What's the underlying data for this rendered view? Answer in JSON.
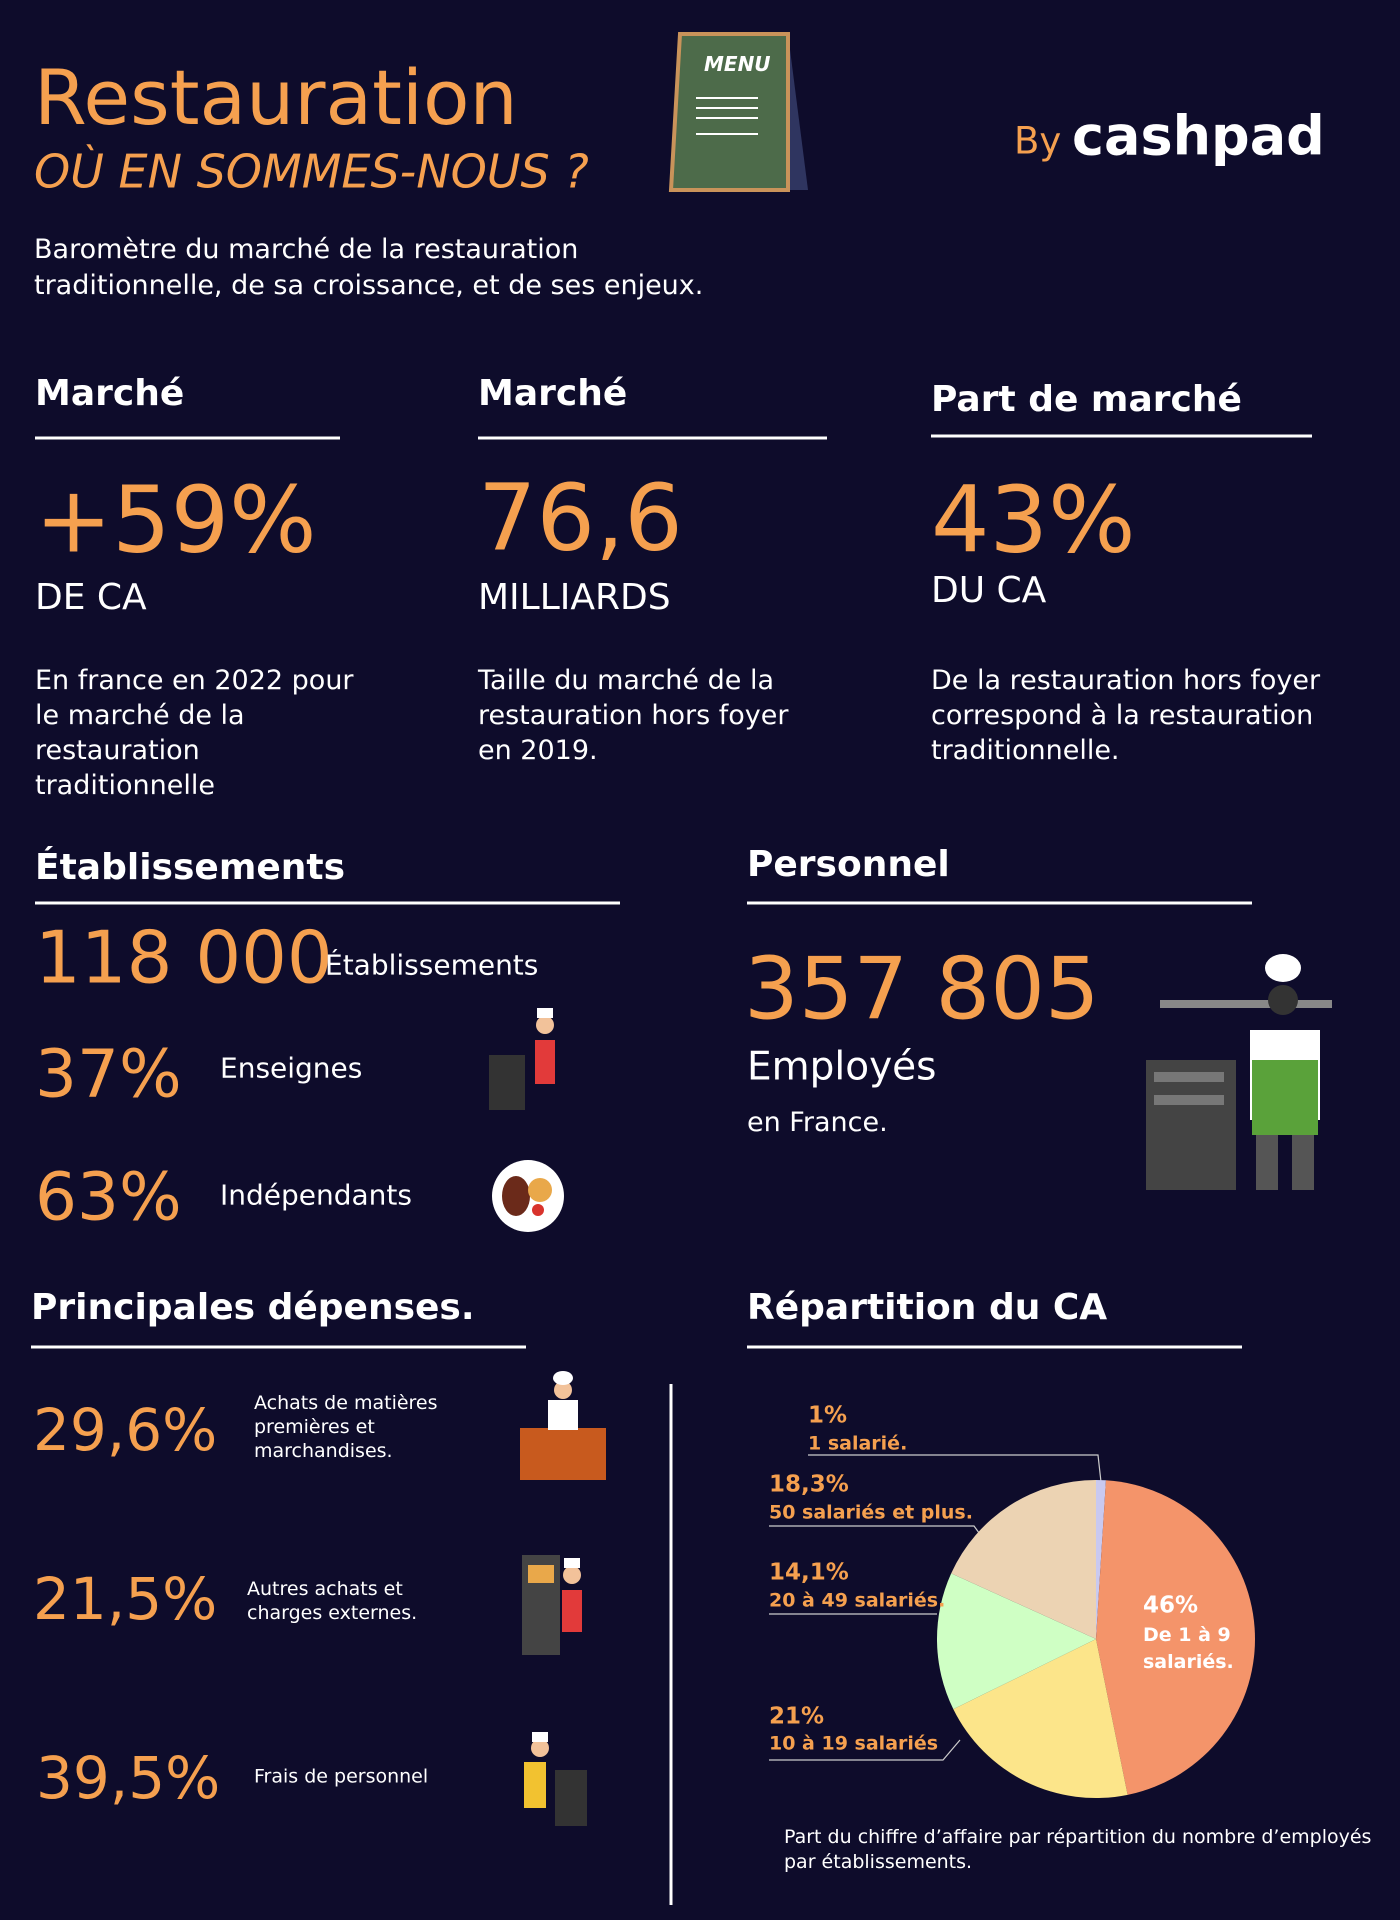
{
  "header": {
    "title": "Restauration",
    "subtitle": "OÙ EN SOMMES-NOUS ?",
    "menu": "MENU",
    "by": "By",
    "brand": "cashpad",
    "description": "Baromètre du marché de la restauration traditionnelle, de sa croissance, et de ses enjeux."
  },
  "stats": [
    {
      "heading": "Marché",
      "value": "+59%",
      "unit": "DE CA",
      "text": "En france en 2022 pour le marché de la restauration traditionnelle"
    },
    {
      "heading": "Marché",
      "value": "76,6",
      "unit": "MILLIARDS",
      "text": "Taille du marché de la restauration hors foyer en 2019."
    },
    {
      "heading": "Part de marché",
      "value": "43%",
      "unit": "DU CA",
      "text": "De la restauration hors foyer correspond à la restauration traditionnelle."
    }
  ],
  "establishments": {
    "heading": "Établissements",
    "total": "118 000",
    "total_label": "Établissements",
    "rows": [
      {
        "value": "37%",
        "label": "Enseignes"
      },
      {
        "value": "63%",
        "label": "Indépendants"
      }
    ]
  },
  "staff": {
    "heading": "Personnel",
    "value": "357 805",
    "unit": "Employés",
    "note": "en France."
  },
  "expenses": {
    "heading": "Principales dépenses.",
    "rows": [
      {
        "value": "29,6%",
        "label": "Achats de matières premières et marchandises."
      },
      {
        "value": "21,5%",
        "label": "Autres achats et charges externes."
      },
      {
        "value": "39,5%",
        "label": "Frais de personnel"
      }
    ]
  },
  "chart_data": {
    "type": "pie",
    "title": "Répartition du CA",
    "categories": [
      "De 1 à 9 salariés.",
      "10 à 19 salariés",
      "20 à 49 salariés.",
      "50 salariés et plus.",
      "1 salarié."
    ],
    "values": [
      46,
      21,
      14.1,
      18.3,
      1
    ],
    "value_labels": [
      "46%",
      "21%",
      "14,1%",
      "18,3%",
      "1%"
    ],
    "colors": [
      "#f4946a",
      "#fce58a",
      "#cfffc4",
      "#ecd3b3",
      "#c9c9f0"
    ],
    "caption": "Part du chiffre d’affaire par répartition du nombre d’employés par établissements."
  }
}
